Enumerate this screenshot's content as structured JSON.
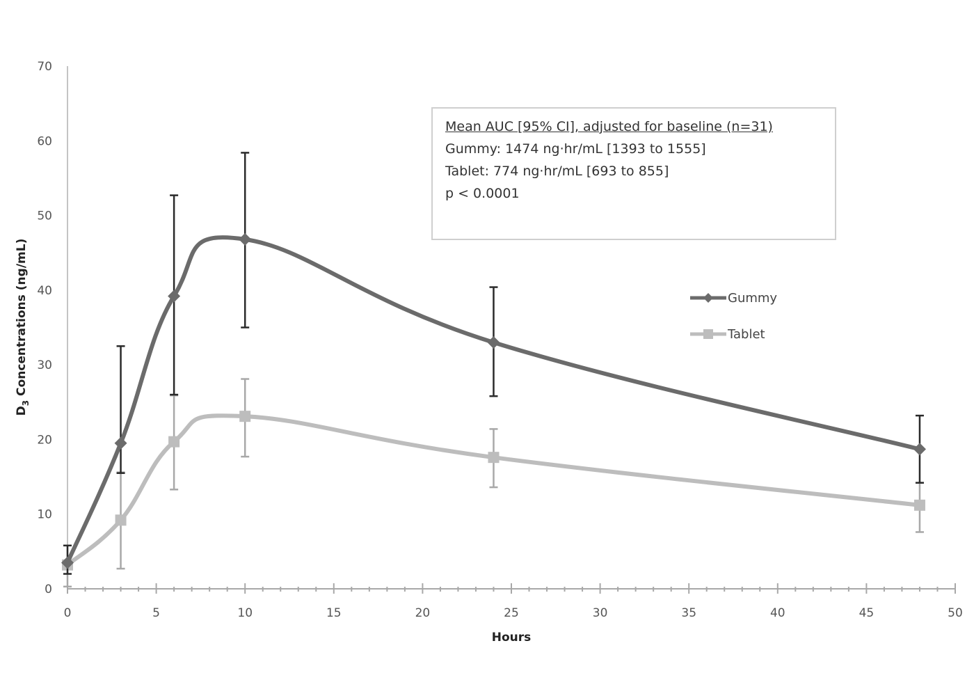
{
  "chart_data": {
    "type": "line",
    "title": "",
    "xlabel": "Hours",
    "ylabel": "D3 Concentrations (ng/mL)",
    "ylabel_parts": {
      "main": "D",
      "sub": "3",
      "rest": " Concentrations (ng/mL)"
    },
    "xlim": [
      0,
      50
    ],
    "ylim": [
      0,
      70
    ],
    "x_ticks": [
      0,
      5,
      10,
      15,
      20,
      25,
      30,
      35,
      40,
      45,
      50
    ],
    "y_ticks": [
      0,
      10,
      20,
      30,
      40,
      50,
      60,
      70
    ],
    "x_minor_step": 1,
    "grid": false,
    "legend_position": "right-center",
    "x": [
      0,
      3,
      6,
      10,
      24,
      48
    ],
    "series": [
      {
        "name": "Gummy",
        "marker": "diamond",
        "color": "#6b6b6b",
        "error_color": "#2a2a2a",
        "values": [
          3.5,
          19.5,
          39.2,
          46.8,
          33.0,
          18.7
        ],
        "error_low": [
          2.0,
          15.5,
          26.0,
          35.0,
          25.8,
          14.2
        ],
        "error_high": [
          5.8,
          32.5,
          52.7,
          58.4,
          40.4,
          23.2
        ]
      },
      {
        "name": "Tablet",
        "marker": "square",
        "color": "#bdbdbd",
        "error_color": "#a8a8a8",
        "values": [
          3.2,
          9.2,
          19.7,
          23.1,
          17.6,
          11.2
        ],
        "error_low": [
          0.3,
          2.7,
          13.3,
          17.7,
          13.6,
          7.6
        ],
        "error_high": [
          5.8,
          15.6,
          25.9,
          28.1,
          21.4,
          14.2
        ]
      }
    ],
    "annotation": {
      "title": "Mean AUC [95% CI], adjusted for baseline (n=31)",
      "lines": [
        "Gummy: 1474 ng·hr/mL [1393 to 1555]",
        "Tablet: 774 ng·hr/mL [693 to 855]",
        "p < 0.0001"
      ]
    }
  }
}
